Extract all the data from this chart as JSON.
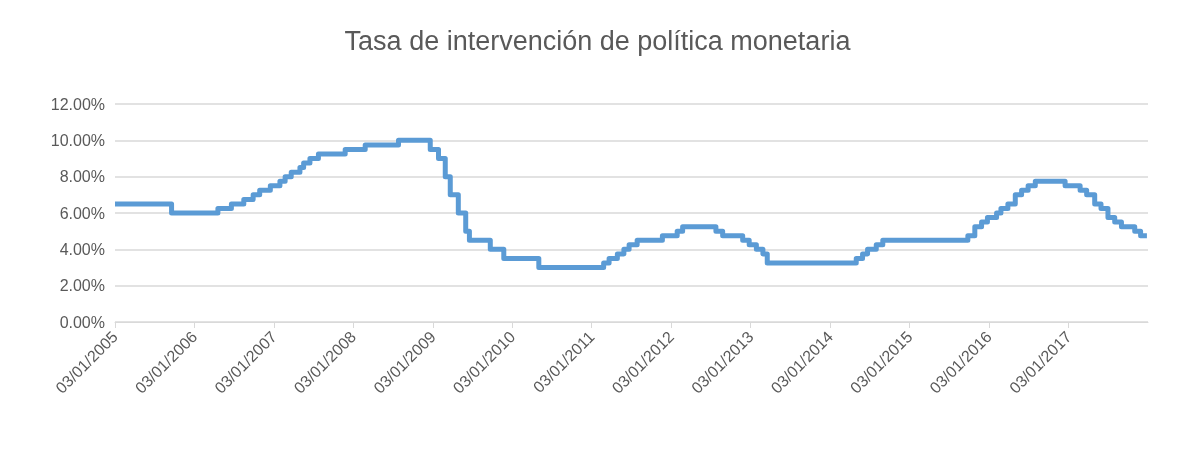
{
  "chart_data": {
    "type": "step",
    "title": "Tasa de intervención de política monetaria",
    "color": "#5b9bd5",
    "grid": "y",
    "marker": "none",
    "line_style": "solid",
    "x": [
      "2005-01-03",
      "2005-09-20",
      "2006-04-21",
      "2006-06-22",
      "2006-08-18",
      "2006-09-30",
      "2006-10-30",
      "2006-12-18",
      "2007-01-31",
      "2007-02-24",
      "2007-03-24",
      "2007-05-03",
      "2007-05-20",
      "2007-06-18",
      "2007-07-27",
      "2007-11-27",
      "2008-02-27",
      "2008-07-29",
      "2008-12-22",
      "2009-01-29",
      "2009-03-01",
      "2009-03-24",
      "2009-04-30",
      "2009-06-03",
      "2009-06-20",
      "2009-09-24",
      "2009-11-25",
      "2010-05-05",
      "2011-02-27",
      "2011-03-24",
      "2011-05-01",
      "2011-05-31",
      "2011-06-24",
      "2011-07-31",
      "2011-11-24",
      "2012-01-31",
      "2012-02-25",
      "2012-07-27",
      "2012-08-27",
      "2012-11-27",
      "2012-12-27",
      "2013-01-29",
      "2013-02-28",
      "2013-03-20",
      "2014-05-03",
      "2014-06-01",
      "2014-06-24",
      "2014-08-03",
      "2014-09-02",
      "2015-09-28",
      "2015-10-30",
      "2015-11-30",
      "2015-12-27",
      "2016-02-07",
      "2016-02-27",
      "2016-03-30",
      "2016-05-03",
      "2016-06-01",
      "2016-07-01",
      "2016-08-03",
      "2016-12-18",
      "2017-02-25",
      "2017-03-27",
      "2017-05-03",
      "2017-06-01",
      "2017-07-03",
      "2017-08-03",
      "2017-09-03",
      "2017-11-03",
      "2017-11-30",
      "2017-12-29"
    ],
    "values": [
      6.5,
      6.0,
      6.25,
      6.5,
      6.75,
      7.0,
      7.25,
      7.5,
      7.75,
      8.0,
      8.25,
      8.5,
      8.75,
      9.0,
      9.25,
      9.5,
      9.75,
      10.0,
      9.5,
      9.0,
      8.0,
      7.0,
      6.0,
      5.0,
      4.5,
      4.0,
      3.5,
      3.0,
      3.25,
      3.5,
      3.75,
      4.0,
      4.25,
      4.5,
      4.75,
      5.0,
      5.25,
      5.0,
      4.75,
      4.5,
      4.25,
      4.0,
      3.75,
      3.25,
      3.5,
      3.75,
      4.0,
      4.25,
      4.5,
      4.75,
      5.25,
      5.5,
      5.75,
      6.0,
      6.25,
      6.5,
      7.0,
      7.25,
      7.5,
      7.75,
      7.5,
      7.25,
      7.0,
      6.5,
      6.25,
      5.75,
      5.5,
      5.25,
      5.0,
      4.75,
      4.75
    ],
    "xlim": [
      "2005-01-03",
      "2018-01-03"
    ],
    "xticks": [
      {
        "value": "2005-01-03",
        "label": "03/01/2005"
      },
      {
        "value": "2006-01-03",
        "label": "03/01/2006"
      },
      {
        "value": "2007-01-03",
        "label": "03/01/2007"
      },
      {
        "value": "2008-01-03",
        "label": "03/01/2008"
      },
      {
        "value": "2009-01-03",
        "label": "03/01/2009"
      },
      {
        "value": "2010-01-03",
        "label": "03/01/2010"
      },
      {
        "value": "2011-01-03",
        "label": "03/01/2011"
      },
      {
        "value": "2012-01-03",
        "label": "03/01/2012"
      },
      {
        "value": "2013-01-03",
        "label": "03/01/2013"
      },
      {
        "value": "2014-01-03",
        "label": "03/01/2014"
      },
      {
        "value": "2015-01-03",
        "label": "03/01/2015"
      },
      {
        "value": "2016-01-03",
        "label": "03/01/2016"
      },
      {
        "value": "2017-01-03",
        "label": "03/01/2017"
      }
    ],
    "ylim": [
      0,
      12
    ],
    "yticks": [
      {
        "value": 0,
        "label": "0.00%"
      },
      {
        "value": 2,
        "label": "2.00%"
      },
      {
        "value": 4,
        "label": "4.00%"
      },
      {
        "value": 6,
        "label": "6.00%"
      },
      {
        "value": 8,
        "label": "8.00%"
      },
      {
        "value": 10,
        "label": "10.00%"
      },
      {
        "value": 12,
        "label": "12.00%"
      }
    ]
  }
}
